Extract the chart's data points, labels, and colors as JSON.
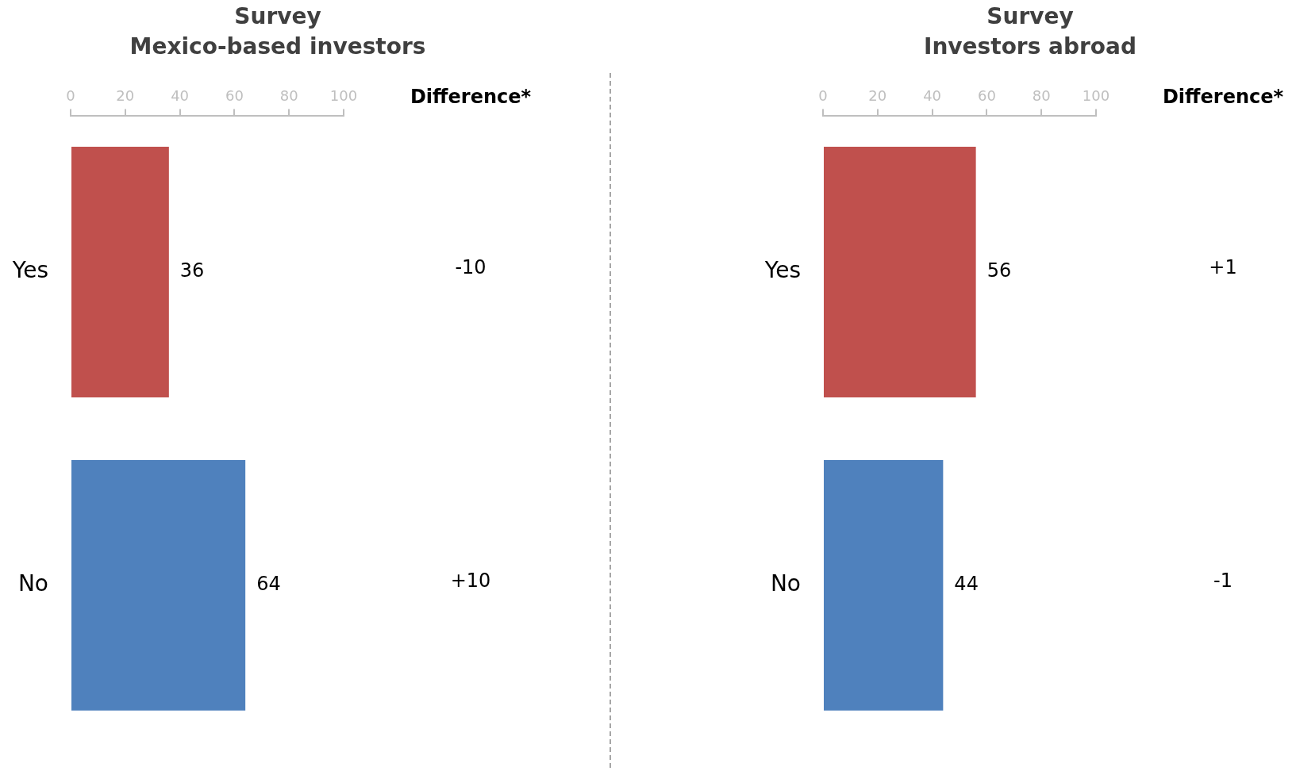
{
  "chart_data": [
    {
      "type": "bar",
      "orientation": "horizontal",
      "title": "Survey",
      "subtitle": "Mexico-based investors",
      "categories": [
        "Yes",
        "No"
      ],
      "values": [
        36,
        64
      ],
      "colors": [
        "#c0504d",
        "#4f81bd"
      ],
      "xlim": [
        0,
        100
      ],
      "xticks": [
        0,
        20,
        40,
        60,
        80,
        100
      ],
      "data_labels": true,
      "annotations": [
        "Difference*",
        "-10",
        "+10"
      ]
    },
    {
      "type": "bar",
      "orientation": "horizontal",
      "title": "Survey",
      "subtitle": "Investors abroad",
      "categories": [
        "Yes",
        "No"
      ],
      "values": [
        56,
        44
      ],
      "colors": [
        "#c0504d",
        "#4f81bd"
      ],
      "xlim": [
        0,
        100
      ],
      "xticks": [
        0,
        20,
        40,
        60,
        80,
        100
      ],
      "data_labels": true,
      "annotations": [
        "Difference*",
        "+1",
        "-1"
      ]
    }
  ]
}
